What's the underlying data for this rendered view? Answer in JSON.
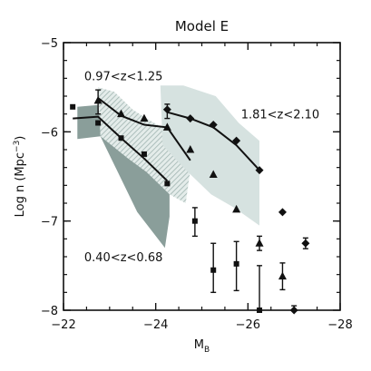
{
  "chart_data": {
    "type": "scatter",
    "title": "Model E",
    "xlabel": "M",
    "xlabel_sub": "B",
    "ylabel": "Log n (Mpc",
    "ylabel_sup": "−3",
    "ylabel_close": ")",
    "xlim": [
      -22,
      -28
    ],
    "ylim": [
      -8,
      -5
    ],
    "x_ticks": [
      -22,
      -24,
      -26,
      -28
    ],
    "x_tick_labels": [
      "−22",
      "−24",
      "−26",
      "−28"
    ],
    "y_ticks": [
      -5,
      -6,
      -7,
      -8
    ],
    "y_tick_labels": [
      "−5",
      "−6",
      "−7",
      "−8"
    ],
    "grid": false,
    "legend": "none",
    "annotations": [
      {
        "text": "0.97<z<1.25",
        "x": -22.45,
        "y": -5.42
      },
      {
        "text": "1.81<z<2.10",
        "x": -25.85,
        "y": -5.85
      },
      {
        "text": "0.40<z<0.68",
        "x": -22.45,
        "y": -7.45
      }
    ],
    "bands": [
      {
        "redshift": "0.40<z<0.68",
        "style": "solid",
        "color": "#8a9e9a",
        "polygon": [
          [
            -22.3,
            -5.72
          ],
          [
            -22.75,
            -5.7
          ],
          [
            -22.8,
            -5.9
          ],
          [
            -24.1,
            -6.55
          ],
          [
            -24.3,
            -6.5
          ],
          [
            -24.3,
            -6.95
          ],
          [
            -24.2,
            -7.3
          ],
          [
            -23.6,
            -6.9
          ],
          [
            -22.8,
            -6.05
          ],
          [
            -22.3,
            -6.08
          ]
        ]
      },
      {
        "redshift": "0.97<z<1.25",
        "style": "hatched",
        "color": "#a9bdb9",
        "polygon": [
          [
            -22.75,
            -5.5
          ],
          [
            -23.1,
            -5.55
          ],
          [
            -23.5,
            -5.75
          ],
          [
            -23.8,
            -5.85
          ],
          [
            -24.3,
            -6.0
          ],
          [
            -24.65,
            -6.0
          ],
          [
            -24.8,
            -6.25
          ],
          [
            -24.65,
            -6.8
          ],
          [
            -24.3,
            -6.7
          ],
          [
            -23.8,
            -6.45
          ],
          [
            -23.4,
            -6.3
          ],
          [
            -22.8,
            -6.05
          ]
        ]
      },
      {
        "redshift": "1.81<z<2.10",
        "style": "solid",
        "color": "#d6e2e0",
        "polygon": [
          [
            -24.1,
            -5.48
          ],
          [
            -24.6,
            -5.48
          ],
          [
            -25.3,
            -5.6
          ],
          [
            -25.8,
            -5.9
          ],
          [
            -26.25,
            -6.1
          ],
          [
            -26.25,
            -7.05
          ],
          [
            -25.7,
            -6.85
          ],
          [
            -25.2,
            -6.7
          ],
          [
            -24.7,
            -6.45
          ],
          [
            -24.15,
            -6.15
          ]
        ]
      }
    ],
    "series": [
      {
        "marker": "square",
        "points": [
          {
            "x": -22.2,
            "y": -5.72
          },
          {
            "x": -22.75,
            "y": -5.9
          },
          {
            "x": -23.25,
            "y": -6.07
          },
          {
            "x": -23.75,
            "y": -6.25
          },
          {
            "x": -24.25,
            "y": -6.58
          },
          {
            "x": -24.85,
            "y": -7.0,
            "err_low": 0.17,
            "err_high": 0.15
          },
          {
            "x": -25.25,
            "y": -7.55,
            "err_low": 0.25,
            "err_high": 0.3
          },
          {
            "x": -25.75,
            "y": -7.48,
            "err_low": 0.3,
            "err_high": 0.25
          },
          {
            "x": -26.25,
            "y": -8.0,
            "err_low": 0.0,
            "err_high": 0.5
          }
        ]
      },
      {
        "marker": "triangle",
        "points": [
          {
            "x": -22.75,
            "y": -5.65,
            "err_low": 0.15,
            "err_high": 0.12
          },
          {
            "x": -23.25,
            "y": -5.8
          },
          {
            "x": -23.75,
            "y": -5.85
          },
          {
            "x": -24.25,
            "y": -5.95
          },
          {
            "x": -24.75,
            "y": -6.2
          },
          {
            "x": -25.25,
            "y": -6.48
          },
          {
            "x": -25.75,
            "y": -6.87
          },
          {
            "x": -26.25,
            "y": -7.25,
            "err_low": 0.08,
            "err_high": 0.08
          },
          {
            "x": -26.75,
            "y": -7.62,
            "err_low": 0.15,
            "err_high": 0.15
          }
        ]
      },
      {
        "marker": "diamond",
        "points": [
          {
            "x": -24.25,
            "y": -5.75,
            "err_low": 0.1,
            "err_high": 0.06
          },
          {
            "x": -24.75,
            "y": -5.85
          },
          {
            "x": -25.25,
            "y": -5.92
          },
          {
            "x": -25.75,
            "y": -6.1
          },
          {
            "x": -26.25,
            "y": -6.43
          },
          {
            "x": -26.75,
            "y": -6.9
          },
          {
            "x": -27.25,
            "y": -7.25,
            "err_low": 0.06,
            "err_high": 0.06
          },
          {
            "x": -27.0,
            "y": -8.0,
            "err_low": 0.0,
            "err_high": 0.05
          }
        ]
      }
    ],
    "model_lines": [
      {
        "redshift": "0.40<z<0.68",
        "points": [
          [
            -22.2,
            -5.85
          ],
          [
            -22.75,
            -5.83
          ],
          [
            -23.25,
            -6.07
          ],
          [
            -23.75,
            -6.3
          ],
          [
            -24.25,
            -6.55
          ]
        ]
      },
      {
        "redshift": "0.97<z<1.25",
        "points": [
          [
            -22.75,
            -5.62
          ],
          [
            -23.25,
            -5.82
          ],
          [
            -23.75,
            -5.92
          ],
          [
            -24.25,
            -5.95
          ],
          [
            -24.75,
            -6.32
          ]
        ]
      },
      {
        "redshift": "1.81<z<2.10",
        "points": [
          [
            -24.25,
            -5.78
          ],
          [
            -24.75,
            -5.85
          ],
          [
            -25.25,
            -5.95
          ],
          [
            -25.75,
            -6.15
          ],
          [
            -26.25,
            -6.43
          ]
        ]
      }
    ]
  }
}
